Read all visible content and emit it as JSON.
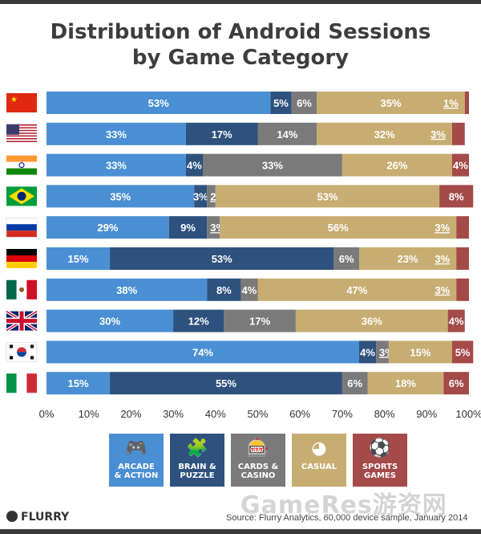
{
  "title_line1": "Distribution of Android Sessions",
  "title_line2": "by Game Category",
  "chart_data": {
    "type": "bar",
    "orientation": "horizontal",
    "stacked": true,
    "categories": [
      "China",
      "United States",
      "India",
      "Brazil",
      "Russia",
      "Germany",
      "Mexico",
      "United Kingdom",
      "South Korea",
      "Italy"
    ],
    "category_display": "flags",
    "series": [
      {
        "name": "ARCADE & ACTION",
        "color": "#4a8fd3",
        "values": [
          53,
          33,
          33,
          35,
          29,
          15,
          38,
          30,
          74,
          15
        ]
      },
      {
        "name": "BRAIN & PUZZLE",
        "color": "#2e527d",
        "values": [
          5,
          17,
          4,
          3,
          9,
          53,
          8,
          12,
          4,
          55
        ]
      },
      {
        "name": "CARDS & CASINO",
        "color": "#7a7a7a",
        "values": [
          6,
          14,
          33,
          2,
          3,
          6,
          4,
          17,
          3,
          6
        ]
      },
      {
        "name": "CASUAL",
        "color": "#c7ad72",
        "values": [
          35,
          32,
          26,
          53,
          56,
          23,
          47,
          36,
          15,
          18
        ]
      },
      {
        "name": "SPORTS GAMES",
        "color": "#a44a49",
        "values": [
          1,
          3,
          4,
          8,
          3,
          3,
          3,
          4,
          5,
          6
        ]
      }
    ],
    "data_labels": [
      [
        "53%",
        "5%",
        "6%",
        "35%",
        "1%"
      ],
      [
        "33%",
        "17%",
        "14%",
        "32%",
        "3%"
      ],
      [
        "33%",
        "4%",
        "33%",
        "26%",
        "4%"
      ],
      [
        "35%",
        "3%",
        "2%",
        "53%",
        "8%"
      ],
      [
        "29%",
        "9%",
        "3%",
        "56%",
        "3%"
      ],
      [
        "15%",
        "53%",
        "6%",
        "23%",
        "3%"
      ],
      [
        "38%",
        "8%",
        "4%",
        "47%",
        "3%"
      ],
      [
        "30%",
        "12%",
        "17%",
        "36%",
        "4%"
      ],
      [
        "74%",
        "4%",
        "3%",
        "15%",
        "5%"
      ],
      [
        "15%",
        "55%",
        "6%",
        "18%",
        "6%"
      ]
    ],
    "xlim": [
      0,
      100
    ],
    "x_ticks": [
      "0%",
      "10%",
      "20%",
      "30%",
      "40%",
      "50%",
      "60%",
      "70%",
      "80%",
      "90%",
      "100%"
    ],
    "xlabel": "",
    "ylabel": "",
    "grid": false,
    "legend_position": "bottom"
  },
  "legend": [
    {
      "line1": "ARCADE",
      "line2": "& ACTION",
      "icon": "gamepad-icon",
      "glyph": "🎮",
      "color": "#4a8fd3"
    },
    {
      "line1": "BRAIN &",
      "line2": "PUZZLE",
      "icon": "puzzle-icon",
      "glyph": "🧩",
      "color": "#2e527d"
    },
    {
      "line1": "CARDS &",
      "line2": "CASINO",
      "icon": "slot-machine-icon",
      "glyph": "🎰",
      "color": "#7a7a7a"
    },
    {
      "line1": "CASUAL",
      "line2": "",
      "icon": "pacman-icon",
      "glyph": "◕",
      "color": "#c7ad72"
    },
    {
      "line1": "SPORTS",
      "line2": "GAMES",
      "icon": "soccer-ball-icon",
      "glyph": "⚽",
      "color": "#a44a49"
    }
  ],
  "footer": {
    "logo": "FLURRY",
    "source": "Source: Flurry Analytics, 60,000 device sample, January 2014",
    "watermark": "GameRes游资网"
  }
}
